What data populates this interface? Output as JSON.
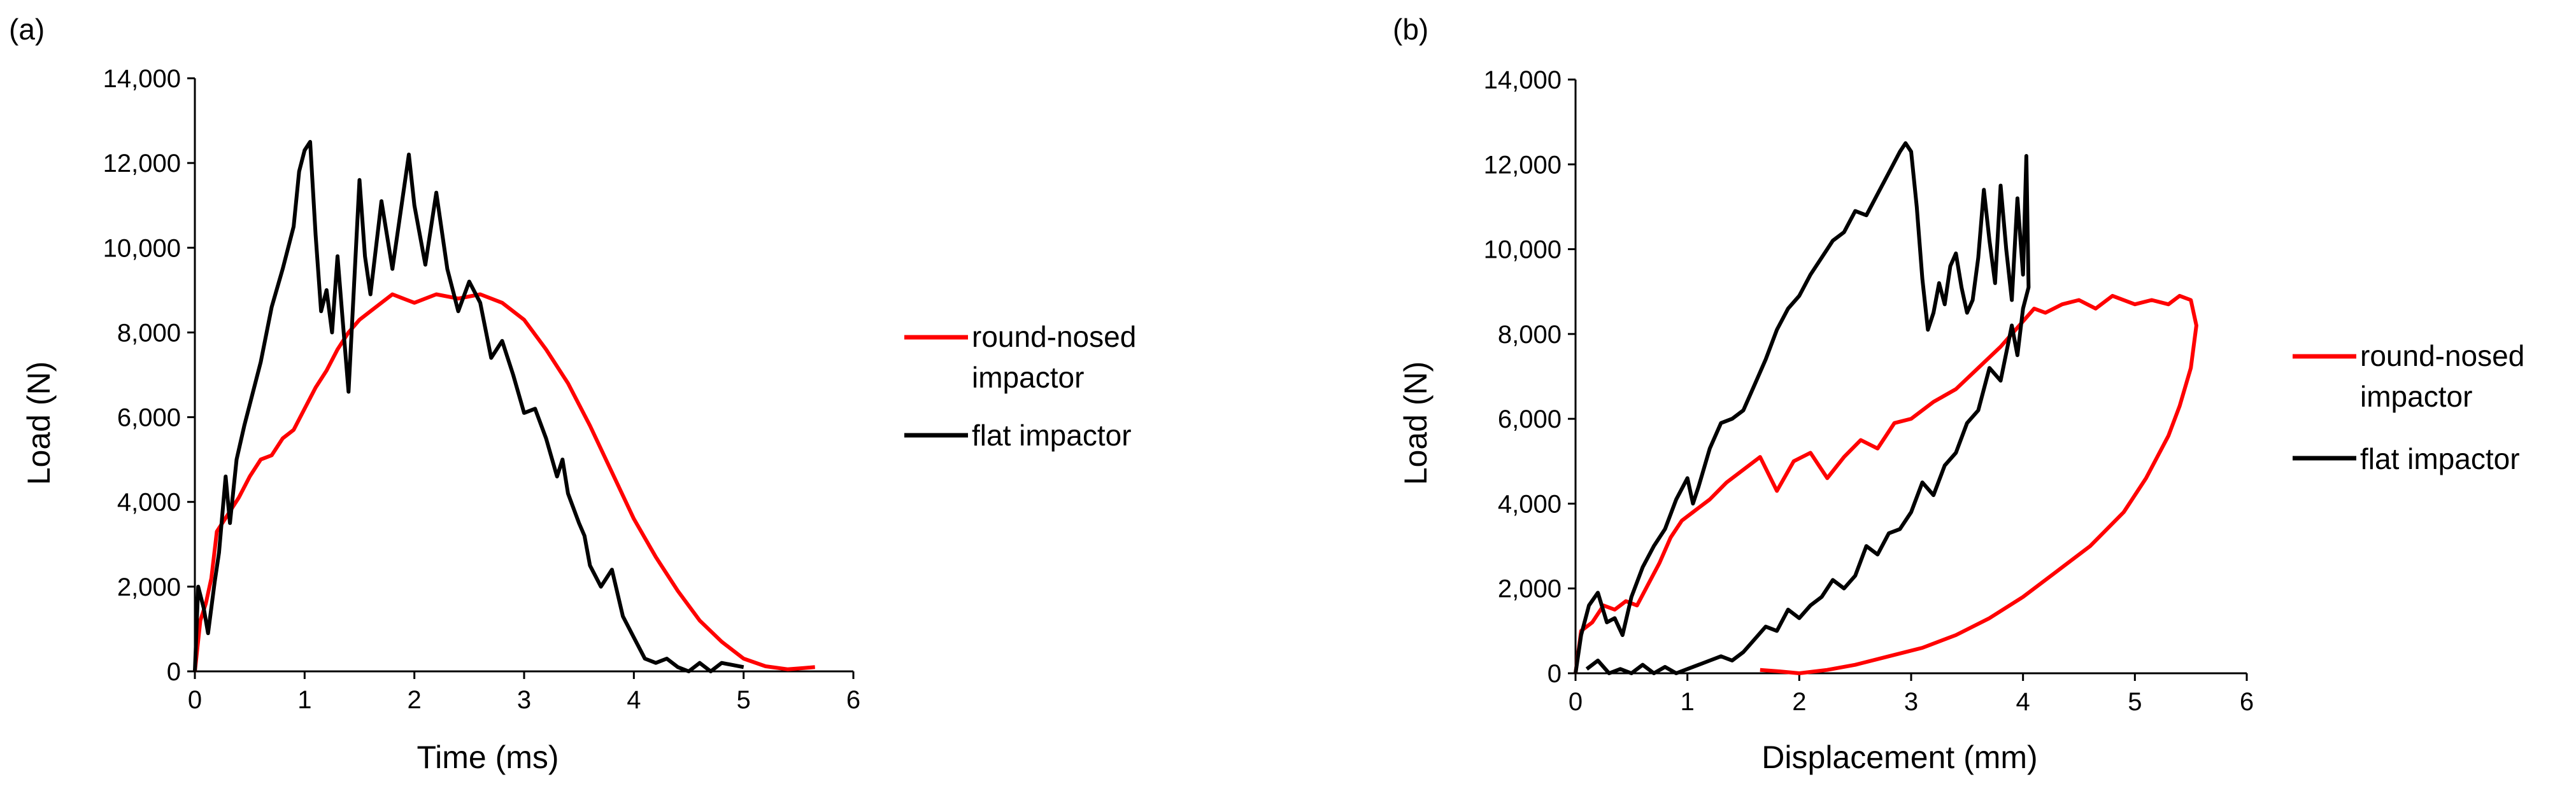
{
  "colors": {
    "round": "#ff0000",
    "flat": "#000000"
  },
  "chart_data": [
    {
      "type": "line",
      "panel_label": "(a)",
      "xlabel": "Time (ms)",
      "ylabel": "Load (N)",
      "xlim": [
        0,
        6
      ],
      "ylim": [
        0,
        14000
      ],
      "xticks": [
        0,
        1,
        2,
        3,
        4,
        5,
        6
      ],
      "yticks": [
        0,
        2000,
        4000,
        6000,
        8000,
        10000,
        12000,
        14000
      ],
      "xtick_labels": [
        "0",
        "1",
        "2",
        "3",
        "4",
        "5",
        "6"
      ],
      "ytick_labels": [
        "0",
        "2,000",
        "4,000",
        "6,000",
        "8,000",
        "10,000",
        "12,000",
        "14,000"
      ],
      "grid": false,
      "legend_position": "right",
      "series": [
        {
          "name": "round-nosed impactor",
          "color": "#ff0000",
          "points": [
            [
              0,
              0
            ],
            [
              0.05,
              1200
            ],
            [
              0.1,
              1600
            ],
            [
              0.15,
              2200
            ],
            [
              0.2,
              3300
            ],
            [
              0.3,
              3700
            ],
            [
              0.4,
              4100
            ],
            [
              0.5,
              4600
            ],
            [
              0.6,
              5000
            ],
            [
              0.7,
              5100
            ],
            [
              0.8,
              5500
            ],
            [
              0.9,
              5700
            ],
            [
              1.0,
              6200
            ],
            [
              1.1,
              6700
            ],
            [
              1.2,
              7100
            ],
            [
              1.3,
              7600
            ],
            [
              1.4,
              8000
            ],
            [
              1.5,
              8300
            ],
            [
              1.6,
              8500
            ],
            [
              1.7,
              8700
            ],
            [
              1.8,
              8900
            ],
            [
              1.9,
              8800
            ],
            [
              2.0,
              8700
            ],
            [
              2.2,
              8900
            ],
            [
              2.4,
              8800
            ],
            [
              2.6,
              8900
            ],
            [
              2.8,
              8700
            ],
            [
              3.0,
              8300
            ],
            [
              3.2,
              7600
            ],
            [
              3.4,
              6800
            ],
            [
              3.6,
              5800
            ],
            [
              3.8,
              4700
            ],
            [
              4.0,
              3600
            ],
            [
              4.2,
              2700
            ],
            [
              4.4,
              1900
            ],
            [
              4.6,
              1200
            ],
            [
              4.8,
              700
            ],
            [
              5.0,
              300
            ],
            [
              5.2,
              120
            ],
            [
              5.4,
              50
            ],
            [
              5.55,
              80
            ],
            [
              5.65,
              100
            ]
          ]
        },
        {
          "name": "flat impactor",
          "color": "#000000",
          "points": [
            [
              0,
              0
            ],
            [
              0.03,
              2000
            ],
            [
              0.08,
              1500
            ],
            [
              0.12,
              900
            ],
            [
              0.18,
              2100
            ],
            [
              0.22,
              2800
            ],
            [
              0.28,
              4600
            ],
            [
              0.32,
              3500
            ],
            [
              0.38,
              5000
            ],
            [
              0.45,
              5800
            ],
            [
              0.5,
              6300
            ],
            [
              0.6,
              7300
            ],
            [
              0.7,
              8600
            ],
            [
              0.8,
              9500
            ],
            [
              0.9,
              10500
            ],
            [
              0.95,
              11800
            ],
            [
              1.0,
              12300
            ],
            [
              1.05,
              12500
            ],
            [
              1.1,
              10300
            ],
            [
              1.15,
              8500
            ],
            [
              1.2,
              9000
            ],
            [
              1.25,
              8000
            ],
            [
              1.3,
              9800
            ],
            [
              1.35,
              8200
            ],
            [
              1.4,
              6600
            ],
            [
              1.45,
              9100
            ],
            [
              1.5,
              11600
            ],
            [
              1.55,
              9800
            ],
            [
              1.6,
              8900
            ],
            [
              1.7,
              11100
            ],
            [
              1.8,
              9500
            ],
            [
              1.9,
              11300
            ],
            [
              1.95,
              12200
            ],
            [
              2.0,
              11000
            ],
            [
              2.1,
              9600
            ],
            [
              2.2,
              11300
            ],
            [
              2.3,
              9500
            ],
            [
              2.4,
              8500
            ],
            [
              2.5,
              9200
            ],
            [
              2.6,
              8700
            ],
            [
              2.7,
              7400
            ],
            [
              2.8,
              7800
            ],
            [
              2.9,
              7000
            ],
            [
              3.0,
              6100
            ],
            [
              3.1,
              6200
            ],
            [
              3.2,
              5500
            ],
            [
              3.3,
              4600
            ],
            [
              3.35,
              5000
            ],
            [
              3.4,
              4200
            ],
            [
              3.5,
              3500
            ],
            [
              3.55,
              3200
            ],
            [
              3.6,
              2500
            ],
            [
              3.7,
              2000
            ],
            [
              3.8,
              2400
            ],
            [
              3.9,
              1300
            ],
            [
              4.0,
              800
            ],
            [
              4.1,
              300
            ],
            [
              4.2,
              200
            ],
            [
              4.3,
              300
            ],
            [
              4.4,
              100
            ],
            [
              4.5,
              0
            ],
            [
              4.6,
              200
            ],
            [
              4.7,
              0
            ],
            [
              4.8,
              200
            ],
            [
              5.0,
              100
            ]
          ]
        }
      ]
    },
    {
      "type": "line",
      "panel_label": "(b)",
      "xlabel": "Displacement (mm)",
      "ylabel": "Load (N)",
      "xlim": [
        0,
        6
      ],
      "ylim": [
        0,
        14000
      ],
      "xticks": [
        0,
        1,
        2,
        3,
        4,
        5,
        6
      ],
      "yticks": [
        0,
        2000,
        4000,
        6000,
        8000,
        10000,
        12000,
        14000
      ],
      "xtick_labels": [
        "0",
        "1",
        "2",
        "3",
        "4",
        "5",
        "6"
      ],
      "ytick_labels": [
        "0",
        "2,000",
        "4,000",
        "6,000",
        "8,000",
        "10,000",
        "12,000",
        "14,000"
      ],
      "grid": false,
      "legend_position": "right",
      "series": [
        {
          "name": "round-nosed impactor",
          "color": "#ff0000",
          "points": [
            [
              0,
              0
            ],
            [
              0.05,
              1000
            ],
            [
              0.15,
              1200
            ],
            [
              0.25,
              1600
            ],
            [
              0.35,
              1500
            ],
            [
              0.45,
              1700
            ],
            [
              0.55,
              1600
            ],
            [
              0.65,
              2100
            ],
            [
              0.75,
              2600
            ],
            [
              0.85,
              3200
            ],
            [
              0.95,
              3600
            ],
            [
              1.05,
              3800
            ],
            [
              1.2,
              4100
            ],
            [
              1.35,
              4500
            ],
            [
              1.5,
              4800
            ],
            [
              1.65,
              5100
            ],
            [
              1.8,
              4300
            ],
            [
              1.95,
              5000
            ],
            [
              2.1,
              5200
            ],
            [
              2.25,
              4600
            ],
            [
              2.4,
              5100
            ],
            [
              2.55,
              5500
            ],
            [
              2.7,
              5300
            ],
            [
              2.85,
              5900
            ],
            [
              3.0,
              6000
            ],
            [
              3.2,
              6400
            ],
            [
              3.4,
              6700
            ],
            [
              3.6,
              7200
            ],
            [
              3.8,
              7700
            ],
            [
              4.0,
              8300
            ],
            [
              4.1,
              8600
            ],
            [
              4.2,
              8500
            ],
            [
              4.35,
              8700
            ],
            [
              4.5,
              8800
            ],
            [
              4.65,
              8600
            ],
            [
              4.8,
              8900
            ],
            [
              5.0,
              8700
            ],
            [
              5.15,
              8800
            ],
            [
              5.3,
              8700
            ],
            [
              5.4,
              8900
            ],
            [
              5.5,
              8800
            ],
            [
              5.55,
              8200
            ],
            [
              5.5,
              7200
            ],
            [
              5.4,
              6300
            ],
            [
              5.3,
              5600
            ],
            [
              5.1,
              4600
            ],
            [
              4.9,
              3800
            ],
            [
              4.6,
              3000
            ],
            [
              4.3,
              2400
            ],
            [
              4.0,
              1800
            ],
            [
              3.7,
              1300
            ],
            [
              3.4,
              900
            ],
            [
              3.1,
              600
            ],
            [
              2.8,
              400
            ],
            [
              2.5,
              200
            ],
            [
              2.25,
              80
            ],
            [
              2.0,
              0
            ],
            [
              1.8,
              50
            ],
            [
              1.65,
              80
            ]
          ]
        },
        {
          "name": "flat impactor",
          "color": "#000000",
          "points": [
            [
              0,
              0
            ],
            [
              0.05,
              900
            ],
            [
              0.12,
              1600
            ],
            [
              0.2,
              1900
            ],
            [
              0.28,
              1200
            ],
            [
              0.35,
              1300
            ],
            [
              0.42,
              900
            ],
            [
              0.5,
              1800
            ],
            [
              0.6,
              2500
            ],
            [
              0.7,
              3000
            ],
            [
              0.8,
              3400
            ],
            [
              0.9,
              4100
            ],
            [
              1.0,
              4600
            ],
            [
              1.05,
              4000
            ],
            [
              1.1,
              4400
            ],
            [
              1.2,
              5300
            ],
            [
              1.3,
              5900
            ],
            [
              1.4,
              6000
            ],
            [
              1.5,
              6200
            ],
            [
              1.6,
              6800
            ],
            [
              1.7,
              7400
            ],
            [
              1.8,
              8100
            ],
            [
              1.9,
              8600
            ],
            [
              2.0,
              8900
            ],
            [
              2.1,
              9400
            ],
            [
              2.2,
              9800
            ],
            [
              2.3,
              10200
            ],
            [
              2.4,
              10400
            ],
            [
              2.5,
              10900
            ],
            [
              2.6,
              10800
            ],
            [
              2.7,
              11300
            ],
            [
              2.8,
              11800
            ],
            [
              2.9,
              12300
            ],
            [
              2.95,
              12500
            ],
            [
              3.0,
              12300
            ],
            [
              3.05,
              11000
            ],
            [
              3.1,
              9300
            ],
            [
              3.15,
              8100
            ],
            [
              3.2,
              8500
            ],
            [
              3.25,
              9200
            ],
            [
              3.3,
              8700
            ],
            [
              3.35,
              9600
            ],
            [
              3.4,
              9900
            ],
            [
              3.45,
              9100
            ],
            [
              3.5,
              8500
            ],
            [
              3.55,
              8800
            ],
            [
              3.6,
              9800
            ],
            [
              3.65,
              11400
            ],
            [
              3.7,
              10200
            ],
            [
              3.75,
              9200
            ],
            [
              3.8,
              11500
            ],
            [
              3.85,
              10000
            ],
            [
              3.9,
              8800
            ],
            [
              3.95,
              11200
            ],
            [
              4.0,
              9400
            ],
            [
              4.03,
              12200
            ],
            [
              4.05,
              9100
            ],
            [
              4.0,
              8600
            ],
            [
              3.95,
              7500
            ],
            [
              3.9,
              8200
            ],
            [
              3.8,
              6900
            ],
            [
              3.7,
              7200
            ],
            [
              3.6,
              6200
            ],
            [
              3.5,
              5900
            ],
            [
              3.4,
              5200
            ],
            [
              3.3,
              4900
            ],
            [
              3.2,
              4200
            ],
            [
              3.1,
              4500
            ],
            [
              3.0,
              3800
            ],
            [
              2.9,
              3400
            ],
            [
              2.8,
              3300
            ],
            [
              2.7,
              2800
            ],
            [
              2.6,
              3000
            ],
            [
              2.5,
              2300
            ],
            [
              2.4,
              2000
            ],
            [
              2.3,
              2200
            ],
            [
              2.2,
              1800
            ],
            [
              2.1,
              1600
            ],
            [
              2.0,
              1300
            ],
            [
              1.9,
              1500
            ],
            [
              1.8,
              1000
            ],
            [
              1.7,
              1100
            ],
            [
              1.6,
              800
            ],
            [
              1.5,
              500
            ],
            [
              1.4,
              300
            ],
            [
              1.3,
              400
            ],
            [
              1.2,
              300
            ],
            [
              1.1,
              200
            ],
            [
              1.0,
              100
            ],
            [
              0.9,
              0
            ],
            [
              0.8,
              150
            ],
            [
              0.7,
              0
            ],
            [
              0.6,
              200
            ],
            [
              0.5,
              0
            ],
            [
              0.4,
              100
            ],
            [
              0.3,
              0
            ],
            [
              0.2,
              300
            ],
            [
              0.1,
              100
            ]
          ]
        }
      ]
    }
  ]
}
